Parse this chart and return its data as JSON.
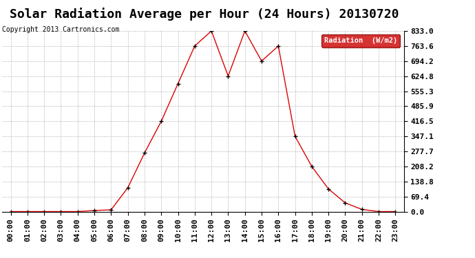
{
  "title": "Solar Radiation Average per Hour (24 Hours) 20130720",
  "copyright": "Copyright 2013 Cartronics.com",
  "legend_label": "Radiation  (W/m2)",
  "hours": [
    "00:00",
    "01:00",
    "02:00",
    "03:00",
    "04:00",
    "05:00",
    "06:00",
    "07:00",
    "08:00",
    "09:00",
    "10:00",
    "11:00",
    "12:00",
    "13:00",
    "14:00",
    "15:00",
    "16:00",
    "17:00",
    "18:00",
    "19:00",
    "20:00",
    "21:00",
    "22:00",
    "23:00"
  ],
  "values": [
    0.0,
    0.0,
    0.0,
    0.0,
    0.0,
    5.0,
    8.0,
    110.0,
    270.0,
    416.5,
    590.0,
    763.6,
    833.0,
    624.8,
    833.0,
    694.2,
    763.6,
    347.1,
    208.2,
    104.0,
    40.0,
    10.0,
    0.0,
    0.0
  ],
  "line_color": "#dd0000",
  "marker": "+",
  "marker_color": "#000000",
  "grid_color": "#bbbbbb",
  "background_color": "#ffffff",
  "ylim": [
    0.0,
    833.0
  ],
  "yticks": [
    0.0,
    69.4,
    138.8,
    208.2,
    277.7,
    347.1,
    416.5,
    485.9,
    555.3,
    624.8,
    694.2,
    763.6,
    833.0
  ],
  "title_fontsize": 13,
  "tick_fontsize": 8,
  "copyright_fontsize": 7,
  "legend_bg": "#cc0000",
  "legend_text_color": "#ffffff"
}
